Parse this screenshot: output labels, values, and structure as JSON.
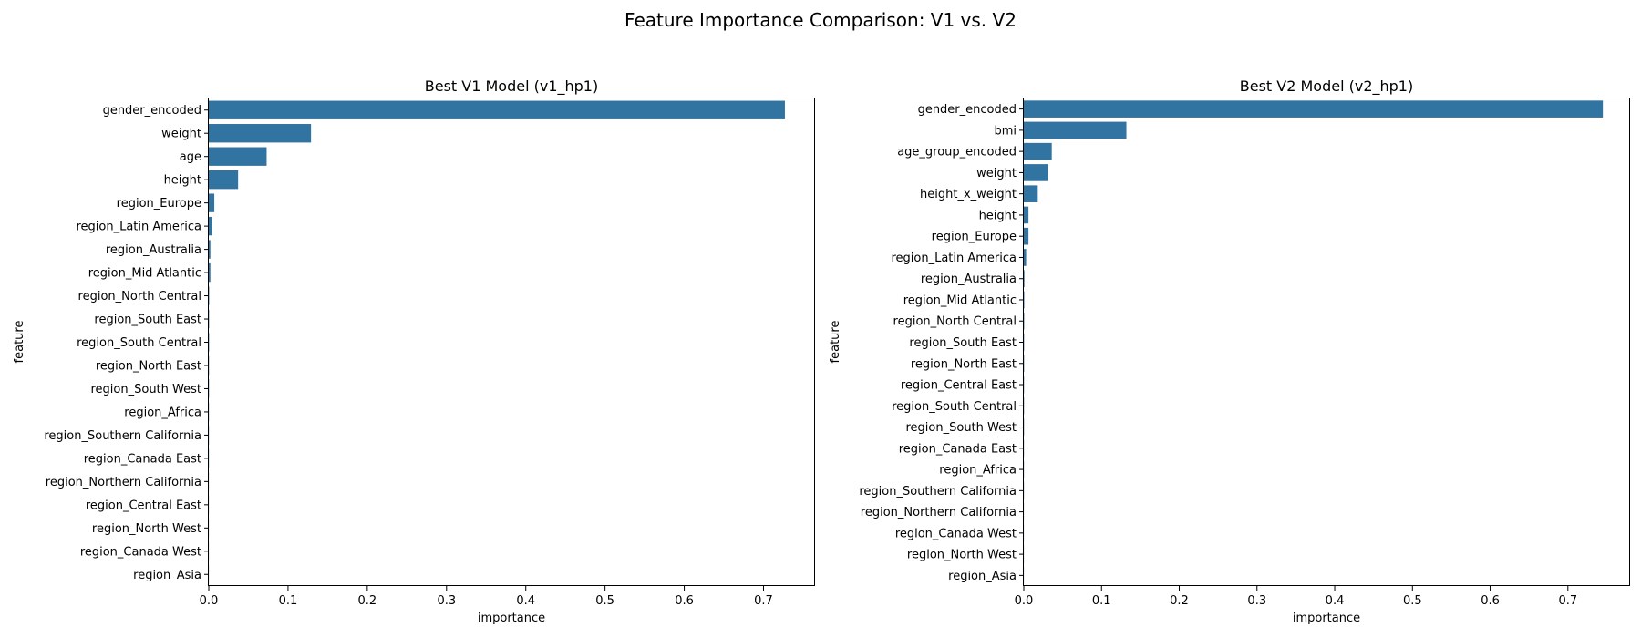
{
  "chart_data": {
    "title": "Feature Importance Comparison: V1 vs. V2",
    "charts": [
      {
        "type": "bar",
        "orientation": "horizontal",
        "title": "Best V1 Model (v1_hp1)",
        "xlabel": "importance",
        "ylabel": "feature",
        "xlim": [
          0,
          0.765
        ],
        "xticks": [
          "0.0",
          "0.1",
          "0.2",
          "0.3",
          "0.4",
          "0.5",
          "0.6",
          "0.7"
        ],
        "bar_color": "#3274a1",
        "grid": false,
        "categories": [
          "gender_encoded",
          "weight",
          "age",
          "height",
          "region_Europe",
          "region_Latin America",
          "region_Australia",
          "region_Mid Atlantic",
          "region_North Central",
          "region_South East",
          "region_South Central",
          "region_North East",
          "region_South West",
          "region_Africa",
          "region_Southern California",
          "region_Canada East",
          "region_Northern California",
          "region_Central East",
          "region_North West",
          "region_Canada West",
          "region_Asia"
        ],
        "values": [
          0.727,
          0.129,
          0.073,
          0.037,
          0.007,
          0.004,
          0.002,
          0.002,
          0.0005,
          0.0004,
          0.0004,
          0.0003,
          0.0003,
          0.0002,
          0.0002,
          0.0002,
          0.0001,
          0.0001,
          0.0001,
          0.0001,
          0.0001
        ]
      },
      {
        "type": "bar",
        "orientation": "horizontal",
        "title": "Best V2 Model (v2_hp1)",
        "xlabel": "importance",
        "ylabel": "feature",
        "xlim": [
          0,
          0.78
        ],
        "xticks": [
          "0.0",
          "0.1",
          "0.2",
          "0.3",
          "0.4",
          "0.5",
          "0.6",
          "0.7"
        ],
        "bar_color": "#3274a1",
        "grid": false,
        "categories": [
          "gender_encoded",
          "bmi",
          "age_group_encoded",
          "weight",
          "height_x_weight",
          "height",
          "region_Europe",
          "region_Latin America",
          "region_Australia",
          "region_Mid Atlantic",
          "region_North Central",
          "region_South East",
          "region_North East",
          "region_Central East",
          "region_South Central",
          "region_South West",
          "region_Canada East",
          "region_Africa",
          "region_Southern California",
          "region_Northern California",
          "region_Canada West",
          "region_North West",
          "region_Asia"
        ],
        "values": [
          0.745,
          0.132,
          0.036,
          0.031,
          0.018,
          0.006,
          0.006,
          0.003,
          0.0008,
          0.0006,
          0.0005,
          0.0004,
          0.0004,
          0.0003,
          0.0003,
          0.0003,
          0.0002,
          0.0002,
          0.0002,
          0.0001,
          0.0001,
          0.0001,
          0.0001
        ]
      }
    ]
  }
}
